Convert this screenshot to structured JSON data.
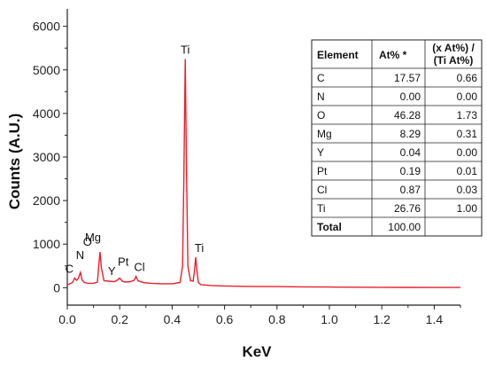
{
  "chart_data": {
    "type": "line",
    "title": "",
    "xlabel": "KeV",
    "ylabel": "Counts (A.U.)",
    "xlim": [
      0,
      1.5
    ],
    "ylim": [
      -400,
      6400
    ],
    "xticks": [
      "0.0",
      "0.2",
      "0.4",
      "0.6",
      "0.8",
      "1.0",
      "1.2",
      "1.4"
    ],
    "yticks": [
      "0",
      "1000",
      "2000",
      "3000",
      "4000",
      "5000",
      "6000"
    ],
    "grid": false,
    "line_color": "#e8212b",
    "spectrum": {
      "x": [
        0.0,
        0.01,
        0.02,
        0.028,
        0.035,
        0.042,
        0.05,
        0.056,
        0.065,
        0.08,
        0.1,
        0.115,
        0.12,
        0.125,
        0.13,
        0.14,
        0.16,
        0.18,
        0.19,
        0.2,
        0.21,
        0.22,
        0.24,
        0.255,
        0.262,
        0.27,
        0.29,
        0.32,
        0.36,
        0.4,
        0.43,
        0.44,
        0.445,
        0.45,
        0.455,
        0.46,
        0.47,
        0.48,
        0.485,
        0.49,
        0.495,
        0.5,
        0.51,
        0.55,
        0.6,
        0.7,
        0.8,
        0.9,
        1.0,
        1.1,
        1.2,
        1.3,
        1.4,
        1.5
      ],
      "y": [
        60,
        90,
        120,
        220,
        170,
        210,
        350,
        180,
        120,
        100,
        100,
        130,
        500,
        820,
        450,
        160,
        150,
        140,
        170,
        220,
        150,
        130,
        140,
        170,
        260,
        160,
        120,
        100,
        90,
        90,
        120,
        500,
        2600,
        5250,
        2600,
        500,
        160,
        150,
        380,
        700,
        380,
        120,
        70,
        50,
        40,
        30,
        25,
        20,
        15,
        12,
        10,
        8,
        6,
        5
      ]
    },
    "peak_labels": [
      {
        "text": "C",
        "x": 0.028,
        "y": 220
      },
      {
        "text": "N",
        "x": 0.042,
        "y": 210
      },
      {
        "text": "O",
        "x": 0.05,
        "y": 350
      },
      {
        "text": "Mg",
        "x": 0.125,
        "y": 820
      },
      {
        "text": "Y",
        "x": 0.19,
        "y": 170
      },
      {
        "text": "Pt",
        "x": 0.2,
        "y": 220
      },
      {
        "text": "Cl",
        "x": 0.262,
        "y": 260
      },
      {
        "text": "Ti",
        "x": 0.45,
        "y": 5250
      },
      {
        "text": "Ti",
        "x": 0.49,
        "y": 700
      }
    ],
    "table": {
      "headers": [
        "Element",
        "At% *",
        "(x At%) /",
        "(Ti At%)"
      ],
      "rows": [
        [
          "C",
          "17.57",
          "0.66"
        ],
        [
          "N",
          "0.00",
          "0.00"
        ],
        [
          "O",
          "46.28",
          "1.73"
        ],
        [
          "Mg",
          "8.29",
          "0.31"
        ],
        [
          "Y",
          "0.04",
          "0.00"
        ],
        [
          "Pt",
          "0.19",
          "0.01"
        ],
        [
          "Cl",
          "0.87",
          "0.03"
        ],
        [
          "Ti",
          "26.76",
          "1.00"
        ],
        [
          "Total",
          "100.00",
          ""
        ]
      ]
    }
  }
}
